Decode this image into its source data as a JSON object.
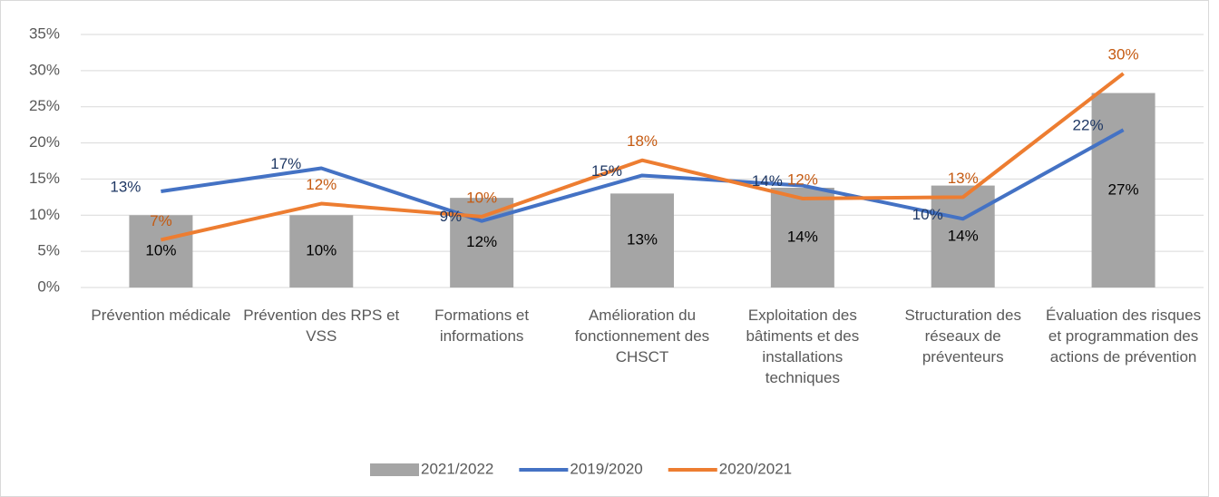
{
  "chart_data": {
    "type": "combo",
    "categories": [
      "Prévention médicale",
      "Prévention des RPS et VSS",
      "Formations et informations",
      "Amélioration du fonctionnement des CHSCT",
      "Exploitation des bâtiments et des installations techniques",
      "Structuration des réseaux de préventeurs",
      "Évaluation des risques et programmation des actions de prévention"
    ],
    "series": [
      {
        "name": "2021/2022",
        "type": "bar",
        "color": "#a5a5a5",
        "label_color": "#000000",
        "values": [
          10,
          10,
          12.4,
          13,
          13.8,
          14.1,
          26.9
        ],
        "value_labels": [
          "10%",
          "10%",
          "12%",
          "13%",
          "14%",
          "14%",
          "27%"
        ]
      },
      {
        "name": "2019/2020",
        "type": "line",
        "color": "#4472c4",
        "label_color": "#1f3864",
        "values": [
          13.3,
          16.5,
          9.2,
          15.5,
          14.1,
          9.5,
          21.8
        ],
        "value_labels": [
          "13%",
          "17%",
          "9%",
          "15%",
          "14%",
          "10%",
          "22%"
        ]
      },
      {
        "name": "2020/2021",
        "type": "line",
        "color": "#ed7d31",
        "label_color": "#c55a11",
        "values": [
          6.6,
          11.6,
          9.8,
          17.6,
          12.3,
          12.5,
          29.6
        ],
        "value_labels": [
          "7%",
          "12%",
          "10%",
          "18%",
          "12%",
          "13%",
          "30%"
        ]
      }
    ],
    "ylim": [
      0,
      35
    ],
    "yticks": [
      {
        "value": 0,
        "label": "0%"
      },
      {
        "value": 5,
        "label": "5%"
      },
      {
        "value": 10,
        "label": "10%"
      },
      {
        "value": 15,
        "label": "15%"
      },
      {
        "value": 20,
        "label": "20%"
      },
      {
        "value": 25,
        "label": "25%"
      },
      {
        "value": 30,
        "label": "30%"
      },
      {
        "value": 35,
        "label": "35%"
      }
    ],
    "grid": true,
    "legend": "bottom"
  }
}
